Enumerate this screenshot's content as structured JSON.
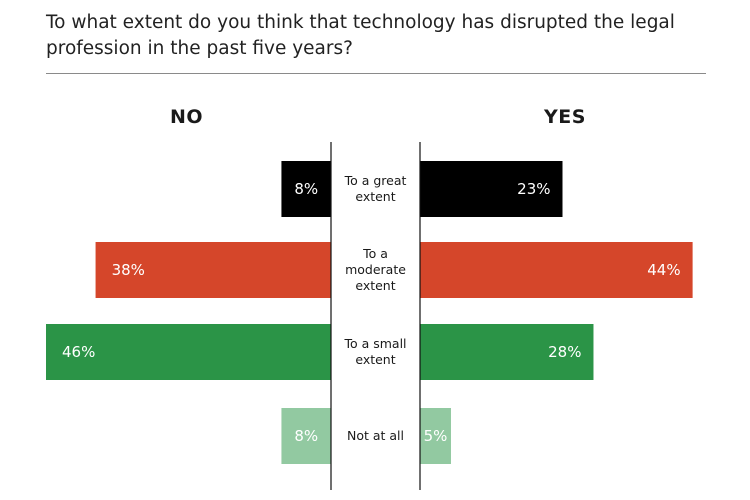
{
  "chart_data": {
    "type": "bar",
    "orientation": "diverging-horizontal",
    "title": "To what extent do you think that technology has disrupted the legal profession in the past five years?",
    "left_label": "NO",
    "right_label": "YES",
    "categories": [
      [
        "To a great",
        "extent"
      ],
      [
        "To a",
        "moderate",
        "extent"
      ],
      [
        "To a small",
        "extent"
      ],
      [
        "Not at all"
      ]
    ],
    "series": [
      {
        "name": "NO",
        "values": [
          8,
          38,
          46,
          8
        ],
        "labels": [
          "8%",
          "38%",
          "46%",
          "8%"
        ]
      },
      {
        "name": "YES",
        "values": [
          23,
          44,
          28,
          5
        ],
        "labels": [
          "23%",
          "44%",
          "28%",
          "5%"
        ]
      }
    ],
    "colors": [
      "#000000",
      "#d5462a",
      "#2b9447",
      "#92c9a1"
    ],
    "xlim": [
      0,
      46
    ]
  }
}
